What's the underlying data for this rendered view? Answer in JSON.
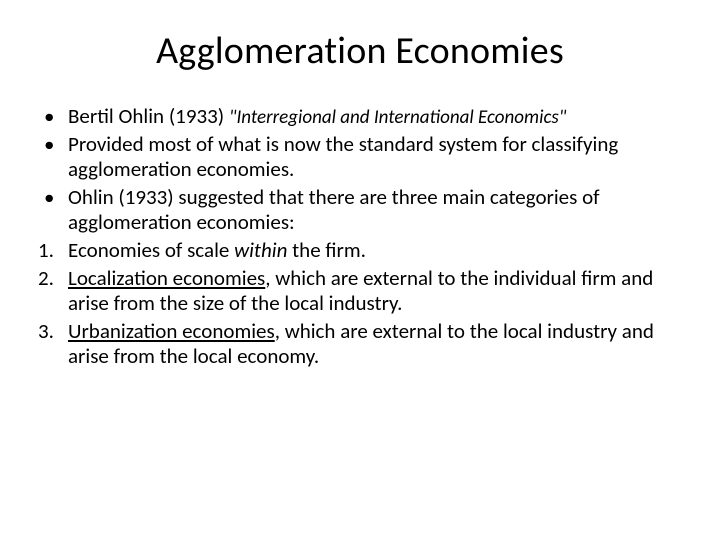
{
  "title": "Agglomeration Economies",
  "bullets": {
    "b1_prefix": "Bertil Ohlin (1933) ",
    "b1_italic": "\"Interregional and International Economics\"",
    "b2": "Provided most of what is now the standard system for classifying agglomeration economies.",
    "b3": "Ohlin (1933) suggested that there are three main categories of agglomeration economies:"
  },
  "numbers": {
    "n1_a": "Economies of scale ",
    "n1_within": "within",
    "n1_b": " the firm.",
    "n2_a": "Localization economies",
    "n2_b": ", which are external to the individual firm and arise from the size of the local industry.",
    "n3_a": "Urbanization economies",
    "n3_b": ", which are external to the local industry and arise from the local economy."
  },
  "colors": {
    "text": "#000000",
    "background": "#ffffff"
  },
  "fonts": {
    "title_size_pt": 38,
    "body_size_pt": 21,
    "citation_size_pt": 19
  }
}
